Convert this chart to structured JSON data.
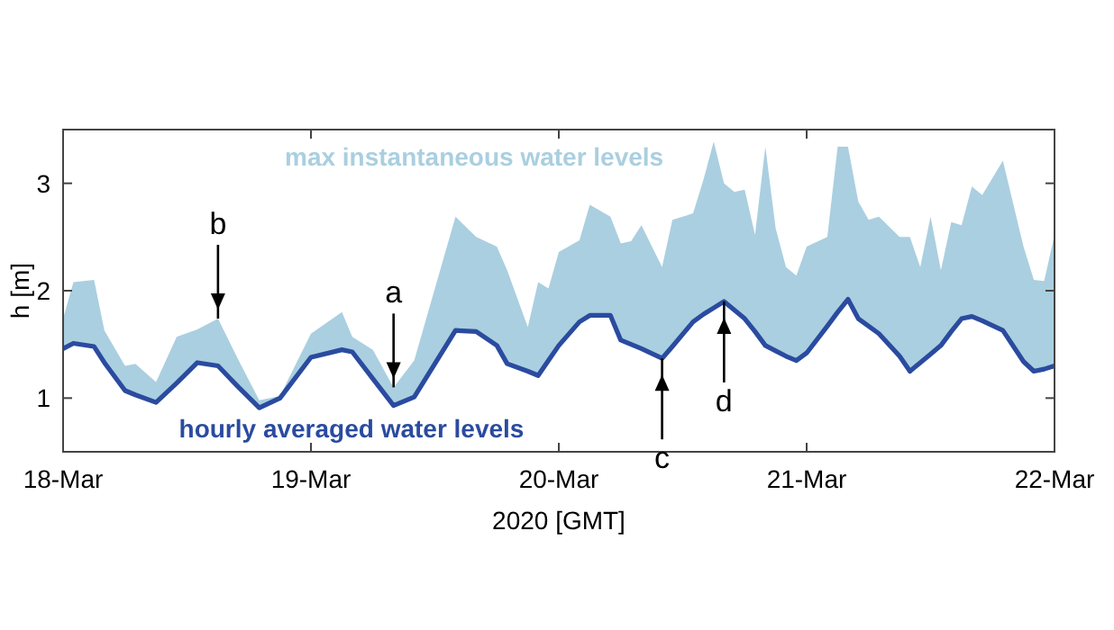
{
  "chart_data": {
    "type": "line",
    "xlabel": "2020 [GMT]",
    "ylabel": "h [m]",
    "x": [
      "2020-03-18T00:00",
      "2020-03-18T01:00",
      "2020-03-18T03:00",
      "2020-03-18T04:00",
      "2020-03-18T06:00",
      "2020-03-18T07:00",
      "2020-03-18T09:00",
      "2020-03-18T11:00",
      "2020-03-18T13:00",
      "2020-03-18T15:00",
      "2020-03-18T17:00",
      "2020-03-18T19:00",
      "2020-03-18T21:00",
      "2020-03-19T00:00",
      "2020-03-19T03:00",
      "2020-03-19T04:00",
      "2020-03-19T06:00",
      "2020-03-19T08:00",
      "2020-03-19T10:00",
      "2020-03-19T14:00",
      "2020-03-19T16:00",
      "2020-03-19T18:00",
      "2020-03-19T19:00",
      "2020-03-19T21:00",
      "2020-03-19T22:00",
      "2020-03-19T23:00",
      "2020-03-20T00:00",
      "2020-03-20T02:00",
      "2020-03-20T03:00",
      "2020-03-20T05:00",
      "2020-03-20T06:00",
      "2020-03-20T07:00",
      "2020-03-20T08:00",
      "2020-03-20T10:00",
      "2020-03-20T11:00",
      "2020-03-20T13:00",
      "2020-03-20T14:00",
      "2020-03-20T15:00",
      "2020-03-20T16:00",
      "2020-03-20T17:00",
      "2020-03-20T18:00",
      "2020-03-20T19:00",
      "2020-03-20T20:00",
      "2020-03-20T21:00",
      "2020-03-20T22:00",
      "2020-03-20T23:00",
      "2020-03-21T00:00",
      "2020-03-21T02:00",
      "2020-03-21T03:00",
      "2020-03-21T04:00",
      "2020-03-21T05:00",
      "2020-03-21T06:00",
      "2020-03-21T07:00",
      "2020-03-21T09:00",
      "2020-03-21T10:00",
      "2020-03-21T11:00",
      "2020-03-21T12:00",
      "2020-03-21T13:00",
      "2020-03-21T14:00",
      "2020-03-21T15:00",
      "2020-03-21T16:00",
      "2020-03-21T17:00",
      "2020-03-21T19:00",
      "2020-03-21T21:00",
      "2020-03-21T22:00",
      "2020-03-21T23:00",
      "2020-03-22T00:00"
    ],
    "series": [
      {
        "name": "max instantaneous water levels",
        "type": "area",
        "color": "#aacfe0",
        "values": [
          1.74,
          2.08,
          2.1,
          1.63,
          1.3,
          1.32,
          1.15,
          1.57,
          1.64,
          1.74,
          1.35,
          0.98,
          1.02,
          1.6,
          1.8,
          1.57,
          1.45,
          1.1,
          1.35,
          2.69,
          2.5,
          2.41,
          2.19,
          1.66,
          2.08,
          2.02,
          2.36,
          2.47,
          2.8,
          2.69,
          2.44,
          2.46,
          2.61,
          2.22,
          2.66,
          2.72,
          3.03,
          3.39,
          3.0,
          2.92,
          2.94,
          2.52,
          3.34,
          2.58,
          2.22,
          2.14,
          2.41,
          2.5,
          3.34,
          3.34,
          2.83,
          2.66,
          2.69,
          2.5,
          2.5,
          2.22,
          2.69,
          2.19,
          2.64,
          2.61,
          2.97,
          2.89,
          3.21,
          2.41,
          2.1,
          2.09,
          2.52
        ]
      },
      {
        "name": "hourly averaged water levels",
        "color": "#2a4b9f",
        "values": [
          1.46,
          1.51,
          1.48,
          1.33,
          1.07,
          1.03,
          0.96,
          1.14,
          1.33,
          1.3,
          1.1,
          0.91,
          1.0,
          1.38,
          1.45,
          1.43,
          1.18,
          0.93,
          1.01,
          1.63,
          1.62,
          1.49,
          1.32,
          1.25,
          1.21,
          1.35,
          1.49,
          1.71,
          1.77,
          1.77,
          1.54,
          1.5,
          1.46,
          1.37,
          1.48,
          1.71,
          1.78,
          1.84,
          1.9,
          1.82,
          1.74,
          1.62,
          1.49,
          1.44,
          1.39,
          1.35,
          1.42,
          1.67,
          1.8,
          1.92,
          1.74,
          1.67,
          1.6,
          1.39,
          1.25,
          1.33,
          1.41,
          1.49,
          1.62,
          1.74,
          1.76,
          1.72,
          1.63,
          1.34,
          1.25,
          1.27,
          1.3
        ]
      }
    ],
    "xlim": [
      "2020-03-18T00:00",
      "2020-03-22T00:00"
    ],
    "xticks": [
      {
        "value": "2020-03-18T00:00",
        "label": "18-Mar"
      },
      {
        "value": "2020-03-19T00:00",
        "label": "19-Mar"
      },
      {
        "value": "2020-03-20T00:00",
        "label": "20-Mar"
      },
      {
        "value": "2020-03-21T00:00",
        "label": "21-Mar"
      },
      {
        "value": "2020-03-22T00:00",
        "label": "22-Mar"
      }
    ],
    "ylim": [
      0.5,
      3.5
    ],
    "yticks": [
      1,
      2,
      3
    ],
    "grid": false,
    "legend": false,
    "annotations": [
      {
        "text": "a",
        "x": "2020-03-19T08:00",
        "y": 1.1
      },
      {
        "text": "b",
        "x": "2020-03-18T15:00",
        "y": 1.74
      },
      {
        "text": "c",
        "x": "2020-03-20T10:00",
        "y": 1.37
      },
      {
        "text": "d",
        "x": "2020-03-20T16:00",
        "y": 1.9
      }
    ]
  }
}
